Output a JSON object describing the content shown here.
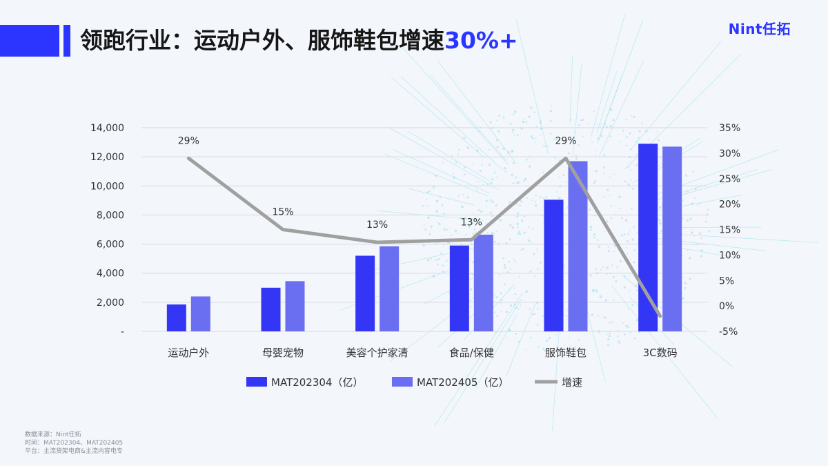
{
  "header": {
    "title_main": "领跑行业：运动户外、服饰鞋包增速",
    "title_highlight": "30%+",
    "logo": "Nint任拓"
  },
  "colors": {
    "accent": "#2b35ff",
    "series1": "#3336f5",
    "series2": "#6a6ef0",
    "line": "#a0a0a0"
  },
  "chart_data": {
    "type": "bar",
    "categories": [
      "运动户外",
      "母婴宠物",
      "美容个护家清",
      "食品/保健",
      "服饰鞋包",
      "3C数码"
    ],
    "series": [
      {
        "name": "MAT202304（亿）",
        "type": "bar",
        "axis": "left",
        "values": [
          1850,
          3000,
          5200,
          5900,
          9050,
          12900
        ]
      },
      {
        "name": "MAT202405（亿）",
        "type": "bar",
        "axis": "left",
        "values": [
          2400,
          3450,
          5850,
          6650,
          11700,
          12700
        ]
      },
      {
        "name": "增速",
        "type": "line",
        "axis": "right",
        "values": [
          0.29,
          0.15,
          0.125,
          0.13,
          0.29,
          -0.02
        ]
      }
    ],
    "line_labels": [
      "29%",
      "15%",
      "13%",
      "13%",
      "29%"
    ],
    "y_left": {
      "min": 0,
      "max": 14000,
      "ticks": [
        "-",
        "2,000",
        "4,000",
        "6,000",
        "8,000",
        "10,000",
        "12,000",
        "14,000"
      ]
    },
    "y_right": {
      "min": -0.05,
      "max": 0.35,
      "ticks": [
        "-5%",
        "0%",
        "5%",
        "10%",
        "15%",
        "20%",
        "25%",
        "30%",
        "35%"
      ]
    },
    "grid": true,
    "legend": "bottom"
  },
  "footnote": {
    "line1": "数据来源：Nint任拓",
    "line2": "时间：MAT202304、MAT202405",
    "line3": "平台：主流货架电商&主流内容电专"
  }
}
